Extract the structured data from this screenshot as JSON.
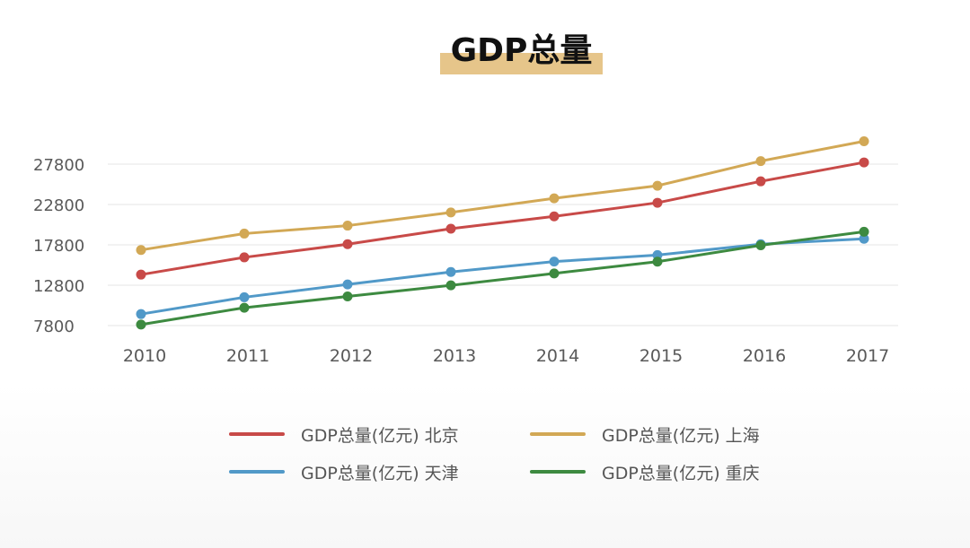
{
  "title": "GDP总量",
  "colors": {
    "beijing": "#c84a48",
    "shanghai": "#d2a855",
    "tianjin": "#5199c8",
    "chongqing": "#3d8a40",
    "grid": "#e6e6e6",
    "axis_text": "#595959"
  },
  "chart_data": {
    "type": "line",
    "title": "GDP总量",
    "xlabel": "",
    "ylabel": "",
    "categories": [
      "2010",
      "2011",
      "2012",
      "2013",
      "2014",
      "2015",
      "2016",
      "2017"
    ],
    "y_ticks": [
      "7800",
      "12800",
      "17800",
      "22800",
      "27800"
    ],
    "ylim": [
      7800,
      27800
    ],
    "grid": true,
    "legend_position": "bottom",
    "series": [
      {
        "key": "beijing",
        "name": "GDP总量(亿元) 北京",
        "color": "#c84a48",
        "values": [
          14114,
          16252,
          17879,
          19800,
          21331,
          23014,
          25669,
          28015
        ]
      },
      {
        "key": "shanghai",
        "name": "GDP总量(亿元) 上海",
        "color": "#d2a855",
        "values": [
          17166,
          19196,
          20182,
          21818,
          23568,
          25123,
          28179,
          30633
        ]
      },
      {
        "key": "tianjin",
        "name": "GDP总量(亿元) 天津",
        "color": "#5199c8",
        "values": [
          9224,
          11307,
          12894,
          14442,
          15727,
          16538,
          17885,
          18549
        ]
      },
      {
        "key": "chongqing",
        "name": "GDP总量(亿元) 重庆",
        "color": "#3d8a40",
        "values": [
          7926,
          10011,
          11410,
          12783,
          14263,
          15717,
          17741,
          19425
        ]
      }
    ]
  }
}
